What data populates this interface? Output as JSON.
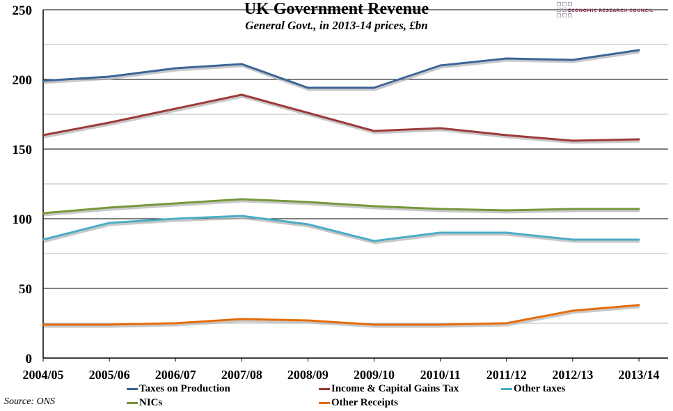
{
  "chart_data": {
    "type": "line",
    "title": "UK Government Revenue",
    "subtitle": "General Govt., in 2013-14 prices, £bn",
    "categories": [
      "2004/05",
      "2005/06",
      "2006/07",
      "2007/08",
      "2008/09",
      "2009/10",
      "2010/11",
      "2011/12",
      "2012/13",
      "2013/14"
    ],
    "ylim": [
      0,
      250
    ],
    "yticks": [
      0,
      50,
      100,
      150,
      200,
      250
    ],
    "grid": true,
    "legend_position": "bottom",
    "series": [
      {
        "name": "Taxes on Production",
        "color": "#3c6496",
        "values": [
          199,
          202,
          208,
          211,
          194,
          194,
          210,
          215,
          214,
          221
        ]
      },
      {
        "name": "Income & Capital Gains Tax",
        "color": "#9b3a3a",
        "values": [
          160,
          169,
          179,
          189,
          176,
          163,
          165,
          160,
          156,
          157
        ]
      },
      {
        "name": "Other taxes",
        "color": "#4bacc6",
        "values": [
          85,
          97,
          100,
          102,
          96,
          84,
          90,
          90,
          85,
          85
        ]
      },
      {
        "name": "NICs",
        "color": "#77963c",
        "values": [
          104,
          108,
          111,
          114,
          112,
          109,
          107,
          106,
          107,
          107
        ]
      },
      {
        "name": "Other Receipts",
        "color": "#e46c0a",
        "values": [
          24,
          24,
          25,
          28,
          27,
          24,
          24,
          25,
          34,
          38
        ]
      }
    ]
  },
  "logo_text": "ECONOMIC RESEARCH COUNCIL",
  "source": "Source: ONS"
}
